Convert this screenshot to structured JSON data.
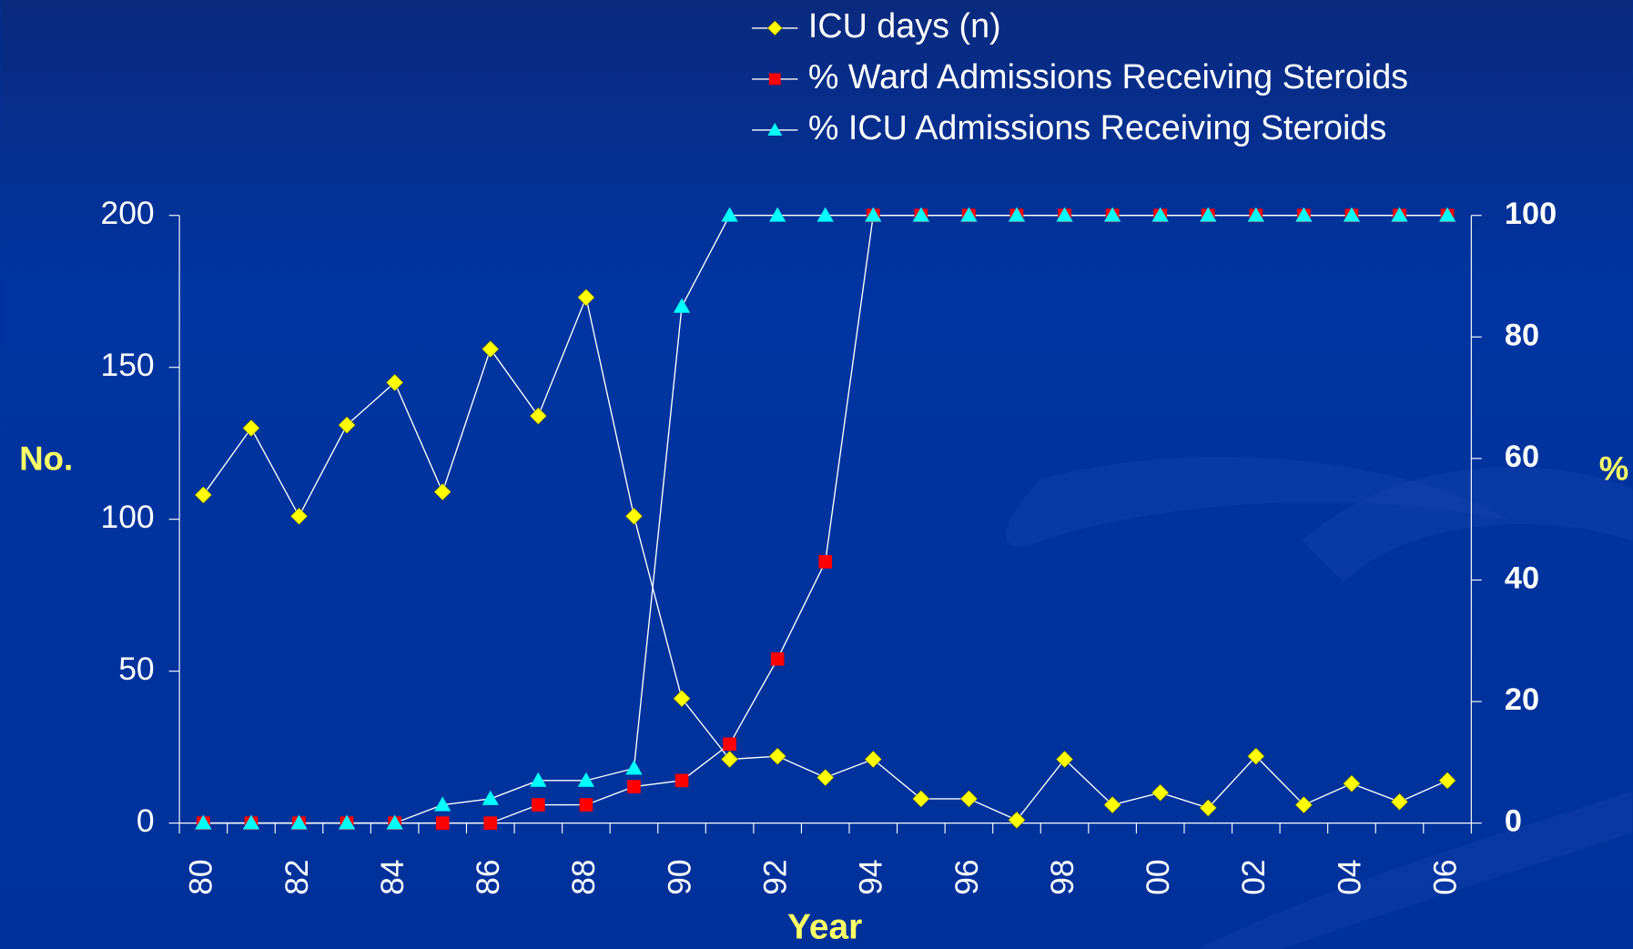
{
  "chart_data": {
    "type": "line",
    "categories": [
      "80",
      null,
      "82",
      null,
      "84",
      null,
      "86",
      null,
      "88",
      null,
      "90",
      null,
      "92",
      null,
      "94",
      null,
      "96",
      null,
      "98",
      null,
      "00",
      null,
      "02",
      null,
      "04",
      null,
      "06"
    ],
    "series": [
      {
        "name": "ICU days (n)",
        "color": "#ffff00",
        "marker": "diamond",
        "values": [
          108,
          130,
          101,
          131,
          145,
          109,
          156,
          134,
          173,
          101,
          41,
          21,
          22,
          15,
          21,
          8,
          8,
          1,
          21,
          6,
          10,
          5,
          22,
          6,
          13,
          7,
          14
        ]
      },
      {
        "name": "% Ward Admissions Receiving Steroids",
        "color": "#ff0000",
        "marker": "square",
        "axis": "y2",
        "values": [
          0,
          0,
          0,
          0,
          0,
          0,
          0,
          3,
          3,
          6,
          7,
          13,
          27,
          43,
          100,
          100,
          100,
          100,
          100,
          100,
          100,
          100,
          100,
          100,
          100,
          100,
          100
        ]
      },
      {
        "name": "% ICU Admissions Receiving Steroids",
        "color": "#00ffff",
        "marker": "triangle",
        "axis": "y2",
        "values": [
          0,
          0,
          0,
          0,
          0,
          3,
          4,
          7,
          7,
          9,
          85,
          100,
          100,
          100,
          100,
          100,
          100,
          100,
          100,
          100,
          100,
          100,
          100,
          100,
          100,
          100,
          100
        ]
      }
    ],
    "ylabel": "No.",
    "y2label": "%",
    "xlabel": "Year",
    "ylim": [
      0,
      200
    ],
    "yticks": [
      0,
      50,
      100,
      150,
      200
    ],
    "y2lim": [
      0,
      100
    ],
    "y2ticks": [
      0,
      20,
      40,
      60,
      80,
      100
    ],
    "line_color": "#ffffff",
    "grid": false,
    "legend": "top"
  }
}
